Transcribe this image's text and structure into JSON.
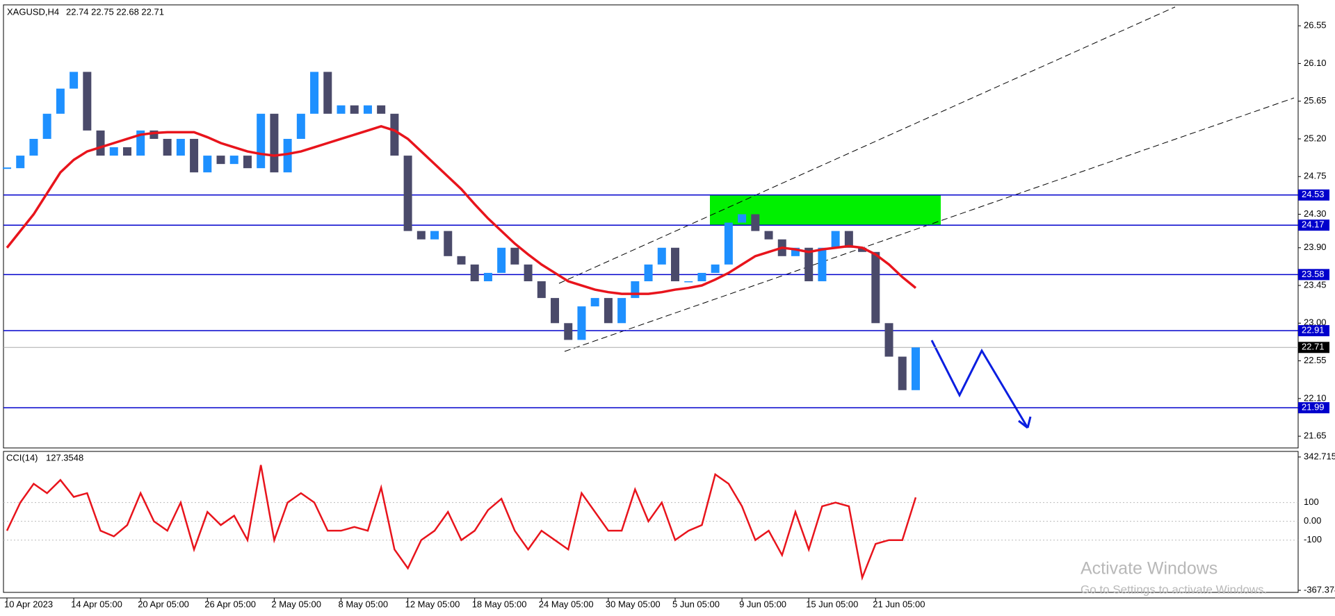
{
  "chart_data": {
    "type": "candlestick",
    "title": "XAGUSD,H4",
    "quote": "22.74 22.75 22.68 22.71",
    "up_color": "#1e90ff",
    "down_color": "#4a4a6a",
    "close": [
      24.85,
      25.0,
      25.2,
      25.5,
      25.8,
      26.0,
      25.3,
      25.0,
      25.1,
      25.0,
      25.3,
      25.2,
      25.0,
      25.2,
      24.8,
      25.0,
      24.9,
      25.0,
      24.85,
      25.5,
      24.8,
      25.2,
      25.5,
      26.0,
      25.5,
      25.6,
      25.5,
      25.6,
      25.5,
      25.0,
      24.1,
      24.0,
      24.1,
      23.8,
      23.7,
      23.5,
      23.6,
      23.9,
      23.7,
      23.5,
      23.3,
      23.0,
      22.8,
      23.2,
      23.3,
      23.0,
      23.3,
      23.5,
      23.7,
      23.9,
      23.5,
      23.5,
      23.6,
      23.7,
      24.2,
      24.3,
      24.1,
      24.0,
      23.8,
      23.9,
      23.5,
      23.9,
      24.1,
      23.9,
      23.85,
      23.0,
      22.6,
      22.2,
      22.71
    ],
    "ma": {
      "color": "#e8141c",
      "values": [
        23.9,
        24.1,
        24.3,
        24.55,
        24.8,
        24.95,
        25.05,
        25.1,
        25.15,
        25.2,
        25.25,
        25.27,
        25.28,
        25.28,
        25.28,
        25.22,
        25.15,
        25.1,
        25.05,
        25.02,
        25.0,
        25.02,
        25.05,
        25.1,
        25.15,
        25.2,
        25.25,
        25.3,
        25.35,
        25.3,
        25.2,
        25.05,
        24.9,
        24.75,
        24.6,
        24.42,
        24.25,
        24.1,
        23.95,
        23.82,
        23.7,
        23.6,
        23.5,
        23.45,
        23.4,
        23.37,
        23.35,
        23.35,
        23.35,
        23.37,
        23.4,
        23.42,
        23.45,
        23.52,
        23.6,
        23.7,
        23.8,
        23.85,
        23.9,
        23.88,
        23.85,
        23.88,
        23.9,
        23.92,
        23.9,
        23.82,
        23.7,
        23.55,
        23.42
      ]
    },
    "xlabels": [
      "10 Apr 2023",
      "14 Apr 05:00",
      "20 Apr 05:00",
      "26 Apr 05:00",
      "2 May 05:00",
      "8 May 05:00",
      "12 May 05:00",
      "18 May 05:00",
      "24 May 05:00",
      "30 May 05:00",
      "5 Jun 05:00",
      "9 Jun 05:00",
      "15 Jun 05:00",
      "21 Jun 05:00"
    ],
    "ylim": [
      21.51,
      26.8
    ],
    "yticks": [
      26.55,
      {
        "value": 26.1,
        "label": "26.10"
      },
      25.65,
      {
        "value": 25.2,
        "label": "25.20"
      },
      24.75,
      {
        "value": 24.3,
        "label": "24.30"
      },
      {
        "value": 23.9,
        "label": "23.90"
      },
      23.45,
      {
        "value": 23.0,
        "label": "23.00"
      },
      22.55,
      {
        "value": 22.1,
        "label": "22.10"
      },
      21.65
    ],
    "levels": [
      24.53,
      24.17,
      23.58,
      22.91,
      21.99
    ],
    "level_color": "#0000cc",
    "current": 22.71,
    "cci": {
      "name": "CCI(14)",
      "color": "#e8141c",
      "ylim": [
        -367.374,
        342.715
      ],
      "yticks": [
        342.715,
        100,
        {
          "value": 0,
          "label": "0.00"
        },
        -100,
        -367.374
      ],
      "values": [
        -50,
        100,
        200,
        150,
        220,
        130,
        150,
        -50,
        -80,
        -20,
        150,
        0,
        -50,
        100,
        -150,
        50,
        -20,
        30,
        -100,
        300,
        -100,
        100,
        150,
        100,
        -50,
        -50,
        -30,
        -50,
        180,
        -150,
        -250,
        -100,
        -50,
        50,
        -100,
        -50,
        60,
        120,
        -50,
        -150,
        -50,
        -100,
        -150,
        150,
        50,
        -50,
        -50,
        170,
        0,
        100,
        -100,
        -50,
        -20,
        250,
        200,
        80,
        -100,
        -50,
        -180,
        50,
        -150,
        80,
        100,
        80,
        -300,
        -120,
        -100,
        -100,
        127.3548
      ]
    },
    "watermark": {
      "title": "Activate Windows",
      "subtitle": "Go to Settings to activate Windows."
    }
  }
}
